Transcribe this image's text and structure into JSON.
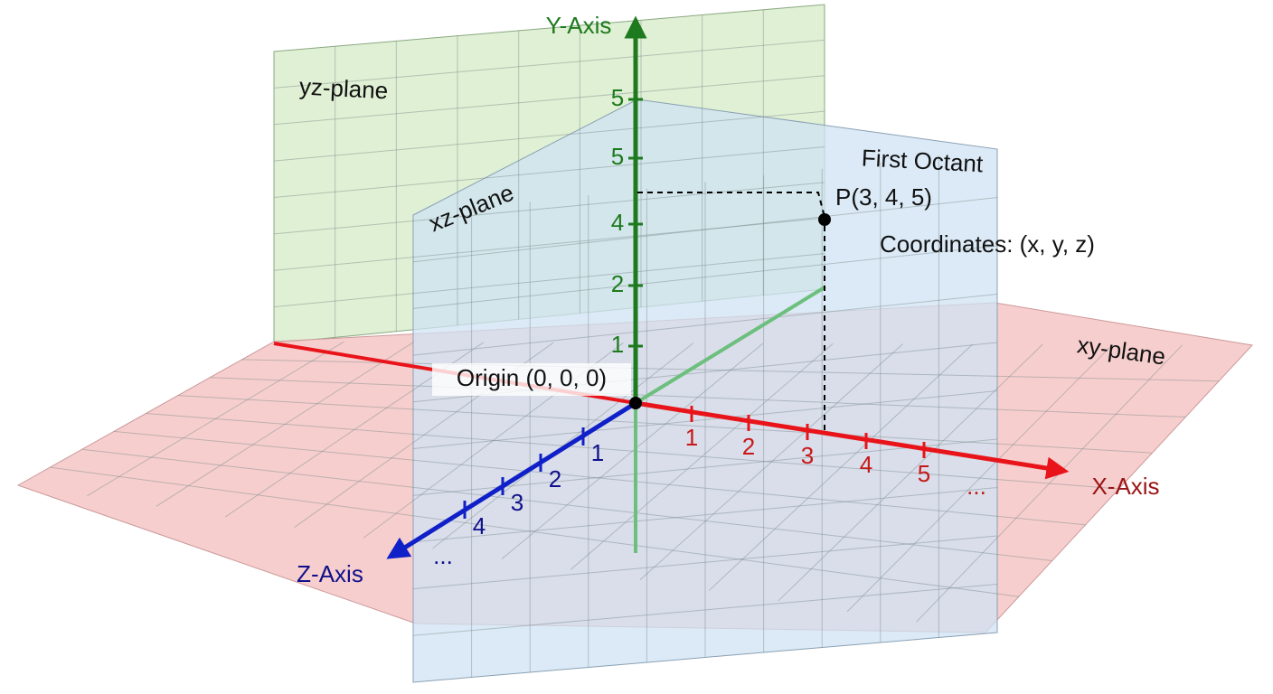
{
  "labels": {
    "y_axis": "Y-Axis",
    "x_axis": "X-Axis",
    "z_axis": "Z-Axis",
    "yz_plane": "yz-plane",
    "xz_plane": "xz-plane",
    "xy_plane": "xy-plane",
    "first_octant": "First Octant",
    "point": "P(3, 4, 5)",
    "coordinates": "Coordinates: (x, y, z)",
    "origin": "Origin (0, 0, 0)"
  },
  "y_ticks": [
    "5",
    "5",
    "4",
    "2",
    "1"
  ],
  "x_ticks": [
    "1",
    "2",
    "3",
    "4",
    "5",
    "..."
  ],
  "z_ticks": [
    "1",
    "2",
    "3",
    "4",
    "..."
  ]
}
